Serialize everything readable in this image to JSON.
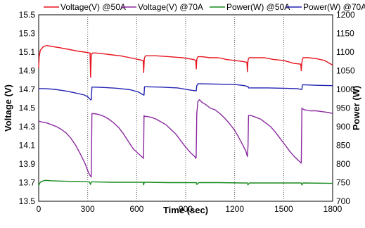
{
  "chart_data": {
    "type": "line",
    "xlabel": "Time (sec)",
    "ylabel_left": "Voltage (V)",
    "ylabel_right": "Power (W)",
    "xlim": [
      0,
      1800
    ],
    "ylim_left": [
      13.5,
      15.5
    ],
    "ylim_right": [
      700,
      1200
    ],
    "x_ticks": [
      "0",
      "300",
      "600",
      "900",
      "1200",
      "1500",
      "1800"
    ],
    "y_left_ticks": [
      "13.5",
      "13.7",
      "13.9",
      "14.1",
      "14.3",
      "14.5",
      "14.7",
      "14.9",
      "15.1",
      "15.3",
      "15.5"
    ],
    "y_right_ticks": [
      "700",
      "750",
      "800",
      "850",
      "900",
      "950",
      "1000",
      "1050",
      "1100",
      "1150",
      "1200"
    ],
    "grid": "vertical dotted",
    "legend_position": "top",
    "series": [
      {
        "name": "Voltage(V) @50A",
        "axis": "left",
        "color": "#e8141e",
        "x": [
          0,
          3,
          10,
          30,
          50,
          80,
          120,
          180,
          240,
          280,
          315,
          318,
          322,
          326,
          330,
          350,
          400,
          450,
          500,
          560,
          610,
          640,
          643,
          647,
          651,
          655,
          680,
          720,
          800,
          880,
          950,
          962,
          965,
          968,
          972,
          976,
          1000,
          1050,
          1100,
          1150,
          1200,
          1250,
          1275,
          1278,
          1281,
          1285,
          1290,
          1320,
          1380,
          1440,
          1500,
          1560,
          1605,
          1608,
          1611,
          1615,
          1620,
          1650,
          1700,
          1750,
          1800
        ],
        "values": [
          14.93,
          15.05,
          15.12,
          15.16,
          15.17,
          15.16,
          15.15,
          15.13,
          15.11,
          15.1,
          15.09,
          14.83,
          15.08,
          15.08,
          15.09,
          15.09,
          15.08,
          15.07,
          15.06,
          15.04,
          15.02,
          15.01,
          14.88,
          15.03,
          15.05,
          15.06,
          15.06,
          15.06,
          15.05,
          15.04,
          15.02,
          15.01,
          14.92,
          15.02,
          15.04,
          15.05,
          15.05,
          15.04,
          15.04,
          15.02,
          15.01,
          15.0,
          14.99,
          14.89,
          15.0,
          15.03,
          15.04,
          15.04,
          15.04,
          15.02,
          15.01,
          14.98,
          14.97,
          14.9,
          14.98,
          15.02,
          15.04,
          15.04,
          15.03,
          15.01,
          14.96
        ]
      },
      {
        "name": "Voltage(V) @70A",
        "axis": "left",
        "color": "#8b2aa0",
        "x": [
          0,
          20,
          50,
          80,
          110,
          140,
          170,
          200,
          230,
          260,
          285,
          300,
          310,
          318,
          322,
          326,
          340,
          370,
          400,
          430,
          460,
          490,
          520,
          550,
          580,
          610,
          630,
          642,
          645,
          648,
          660,
          690,
          720,
          750,
          780,
          810,
          840,
          870,
          900,
          930,
          955,
          962,
          964,
          968,
          975,
          985,
          1000,
          1020,
          1050,
          1080,
          1110,
          1140,
          1170,
          1200,
          1220,
          1245,
          1268,
          1278,
          1282,
          1285,
          1300,
          1330,
          1360,
          1390,
          1420,
          1450,
          1480,
          1510,
          1540,
          1570,
          1595,
          1608,
          1612,
          1615,
          1630,
          1660,
          1700,
          1740,
          1780,
          1800
        ],
        "values": [
          14.36,
          14.35,
          14.34,
          14.32,
          14.3,
          14.27,
          14.23,
          14.17,
          14.09,
          13.99,
          13.9,
          13.83,
          13.79,
          13.77,
          13.76,
          14.44,
          14.44,
          14.43,
          14.41,
          14.38,
          14.34,
          14.29,
          14.22,
          14.14,
          14.06,
          14.01,
          13.98,
          13.96,
          14.42,
          14.41,
          14.41,
          14.4,
          14.38,
          14.35,
          14.32,
          14.27,
          14.22,
          14.15,
          14.08,
          14.02,
          13.98,
          13.96,
          13.97,
          14.44,
          14.57,
          14.59,
          14.56,
          14.54,
          14.5,
          14.48,
          14.44,
          14.39,
          14.33,
          14.26,
          14.2,
          14.12,
          14.04,
          13.98,
          14.1,
          14.42,
          14.42,
          14.4,
          14.38,
          14.34,
          14.3,
          14.24,
          14.17,
          14.1,
          14.03,
          13.97,
          13.93,
          13.91,
          14.5,
          14.49,
          14.48,
          14.47,
          14.47,
          14.46,
          14.45,
          14.44
        ]
      },
      {
        "name": "Power(W) @50A",
        "axis": "right",
        "color": "#168a1e",
        "x": [
          0,
          5,
          15,
          40,
          80,
          150,
          250,
          310,
          318,
          322,
          330,
          450,
          600,
          640,
          643,
          647,
          660,
          800,
          950,
          965,
          968,
          980,
          1100,
          1250,
          1278,
          1281,
          1290,
          1450,
          1608,
          1611,
          1620,
          1800
        ],
        "values": [
          740,
          748,
          753,
          756,
          755,
          754,
          753,
          752,
          745,
          752,
          752,
          751,
          751,
          751,
          744,
          751,
          751,
          750,
          750,
          750,
          745,
          750,
          750,
          749,
          749,
          744,
          749,
          749,
          749,
          744,
          749,
          748
        ]
      },
      {
        "name": "Power(W) @70A",
        "axis": "right",
        "color": "#2424b4",
        "x": [
          0,
          40,
          100,
          160,
          220,
          280,
          300,
          312,
          318,
          322,
          326,
          340,
          400,
          480,
          560,
          610,
          630,
          642,
          645,
          648,
          660,
          750,
          850,
          930,
          962,
          965,
          968,
          975,
          1000,
          1100,
          1200,
          1260,
          1278,
          1282,
          1285,
          1300,
          1400,
          1500,
          1580,
          1608,
          1612,
          1615,
          1630,
          1700,
          1800
        ],
        "values": [
          1002,
          1002,
          1000,
          996,
          991,
          985,
          980,
          975,
          972,
          972,
          1006,
          1006,
          1005,
          1003,
          999,
          993,
          988,
          985,
          985,
          1007,
          1007,
          1006,
          1004,
          998,
          996,
          996,
          1010,
          1015,
          1015,
          1014,
          1013,
          1010,
          1008,
          1008,
          1004,
          1004,
          1004,
          1003,
          1002,
          1000,
          1000,
          1012,
          1012,
          1011,
          1010
        ]
      }
    ]
  }
}
